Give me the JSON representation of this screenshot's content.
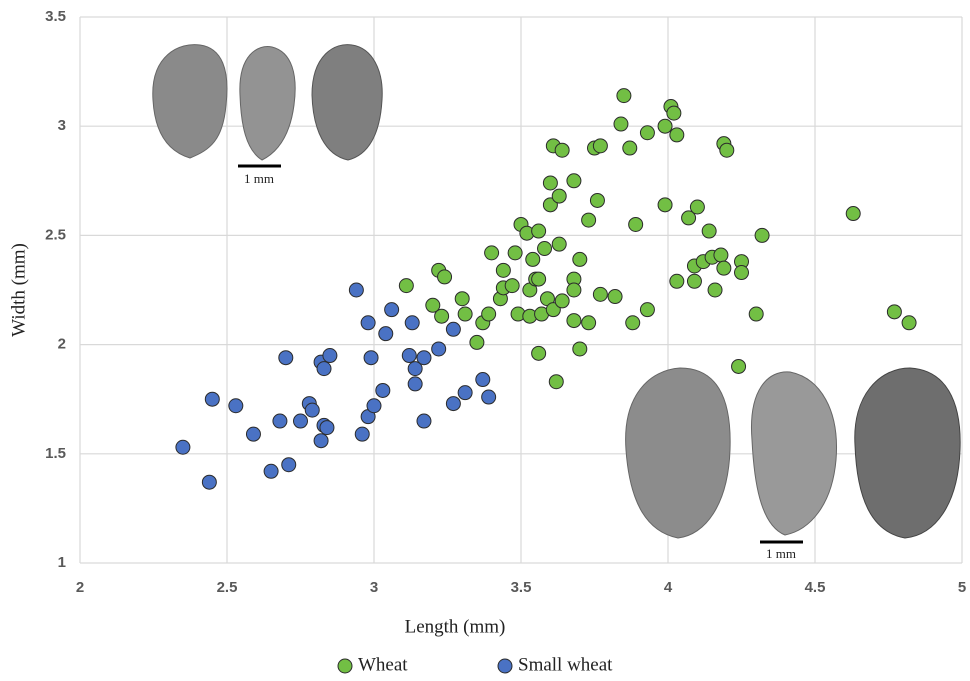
{
  "chart_data": {
    "type": "scatter",
    "x_label": "Length (mm)",
    "y_label": "Width (mm)",
    "xlim": [
      2,
      5
    ],
    "xticks": [
      2,
      2.5,
      3,
      3.5,
      4,
      4.5,
      5
    ],
    "ylim": [
      1,
      3.5
    ],
    "yticks": [
      1,
      1.5,
      2,
      2.5,
      3,
      3.5
    ],
    "grid": true,
    "legend_position": "bottom",
    "annotations": [
      "1 mm",
      "1 mm"
    ],
    "series": [
      {
        "name": "Wheat",
        "color": "#72bf44",
        "x": [
          3.11,
          3.2,
          3.22,
          3.24,
          3.23,
          3.3,
          3.31,
          3.35,
          3.37,
          3.39,
          3.4,
          3.43,
          3.44,
          3.44,
          3.47,
          3.48,
          3.49,
          3.5,
          3.52,
          3.53,
          3.53,
          3.54,
          3.55,
          3.56,
          3.56,
          3.56,
          3.57,
          3.58,
          3.59,
          3.6,
          3.6,
          3.61,
          3.61,
          3.62,
          3.63,
          3.63,
          3.64,
          3.64,
          3.68,
          3.68,
          3.68,
          3.68,
          3.7,
          3.7,
          3.73,
          3.73,
          3.75,
          3.76,
          3.77,
          3.77,
          3.82,
          3.84,
          3.85,
          3.87,
          3.88,
          3.89,
          3.93,
          3.93,
          3.99,
          3.99,
          4.01,
          4.02,
          4.03,
          4.03,
          4.07,
          4.09,
          4.09,
          4.1,
          4.12,
          4.14,
          4.15,
          4.16,
          4.18,
          4.19,
          4.19,
          4.2,
          4.24,
          4.25,
          4.25,
          4.3,
          4.32,
          4.63,
          4.77,
          4.82
        ],
        "values": [
          2.27,
          2.18,
          2.34,
          2.31,
          2.13,
          2.21,
          2.14,
          2.01,
          2.1,
          2.14,
          2.42,
          2.21,
          2.34,
          2.26,
          2.27,
          2.42,
          2.14,
          2.55,
          2.51,
          2.25,
          2.13,
          2.39,
          2.3,
          1.96,
          2.3,
          2.52,
          2.14,
          2.44,
          2.21,
          2.74,
          2.64,
          2.91,
          2.16,
          1.83,
          2.68,
          2.46,
          2.89,
          2.2,
          2.75,
          2.3,
          2.25,
          2.11,
          2.39,
          1.98,
          2.57,
          2.1,
          2.9,
          2.66,
          2.91,
          2.23,
          2.22,
          3.01,
          3.14,
          2.9,
          2.1,
          2.55,
          2.97,
          2.16,
          2.64,
          3.0,
          3.09,
          3.06,
          2.96,
          2.29,
          2.58,
          2.36,
          2.29,
          2.63,
          2.38,
          2.52,
          2.4,
          2.25,
          2.41,
          2.92,
          2.35,
          2.89,
          1.9,
          2.38,
          2.33,
          2.14,
          2.5,
          2.6,
          2.15,
          2.1
        ]
      },
      {
        "name": "Small wheat",
        "color": "#4a72c4",
        "x": [
          2.35,
          2.44,
          2.45,
          2.53,
          2.59,
          2.65,
          2.68,
          2.7,
          2.71,
          2.75,
          2.78,
          2.79,
          2.82,
          2.82,
          2.83,
          2.83,
          2.84,
          2.85,
          2.94,
          2.96,
          2.98,
          2.98,
          2.99,
          3.0,
          3.03,
          3.04,
          3.06,
          3.12,
          3.13,
          3.14,
          3.14,
          3.17,
          3.17,
          3.22,
          3.27,
          3.27,
          3.31,
          3.37,
          3.39
        ],
        "values": [
          1.53,
          1.37,
          1.75,
          1.72,
          1.59,
          1.42,
          1.65,
          1.94,
          1.45,
          1.65,
          1.73,
          1.7,
          1.92,
          1.56,
          1.89,
          1.63,
          1.62,
          1.95,
          2.25,
          1.59,
          2.1,
          1.67,
          1.94,
          1.72,
          1.79,
          2.05,
          2.16,
          1.95,
          2.1,
          1.89,
          1.82,
          1.94,
          1.65,
          1.98,
          2.07,
          1.73,
          1.78,
          1.84,
          1.76
        ]
      }
    ]
  }
}
